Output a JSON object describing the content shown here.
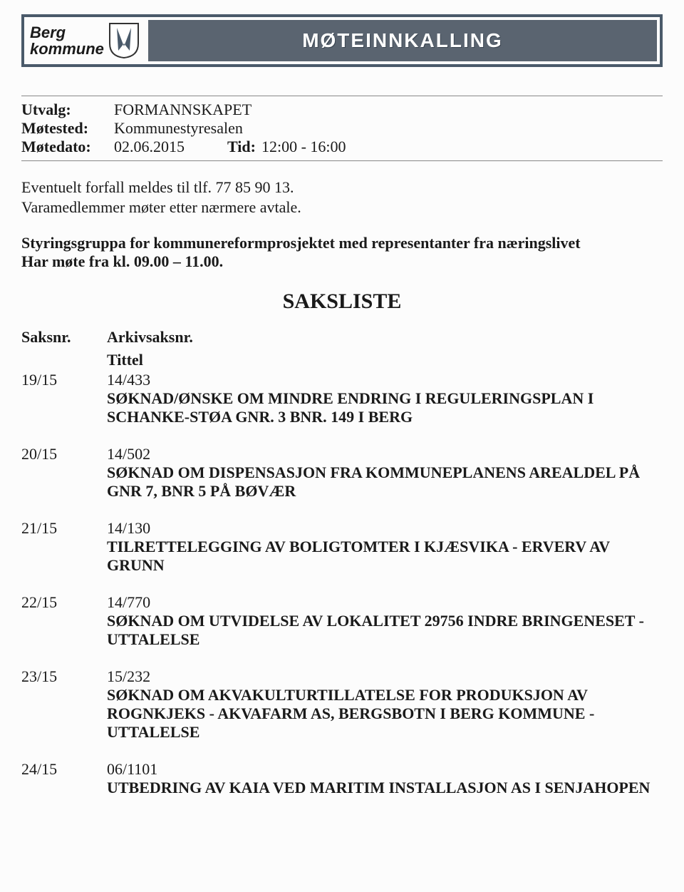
{
  "header": {
    "org_line1": "Berg",
    "org_line2": "kommune",
    "banner": "MØTEINNKALLING",
    "banner_bg": "#5a6470",
    "banner_fg": "#ffffff",
    "border_color": "#4a5a6a"
  },
  "meta": {
    "utvalg_label": "Utvalg:",
    "utvalg_value": "FORMANNSKAPET",
    "motested_label": "Møtested:",
    "motested_value": "Kommunestyresalen",
    "motedato_label": "Møtedato:",
    "motedato_value": "02.06.2015",
    "tid_label": "Tid:",
    "tid_value": "12:00 - 16:00"
  },
  "notes": {
    "line1": "Eventuelt forfall meldes til tlf. 77 85 90 13.",
    "line2": "Varamedlemmer møter etter nærmere avtale."
  },
  "emphasis": {
    "line1": "Styringsgruppa for kommunereformprosjektet med representanter fra næringslivet",
    "line2": "Har møte fra kl. 09.00 – 11.00."
  },
  "saksliste": {
    "heading": "SAKSLISTE",
    "col_saksnr": "Saksnr.",
    "col_arkiv": "Arkivsaksnr.",
    "col_tittel": "Tittel",
    "items": [
      {
        "saksnr": "19/15",
        "arkiv": "14/433",
        "title": "SØKNAD/ØNSKE OM MINDRE ENDRING I REGULERINGSPLAN I SCHANKE-STØA GNR. 3 BNR. 149 I BERG"
      },
      {
        "saksnr": "20/15",
        "arkiv": "14/502",
        "title": "SØKNAD OM DISPENSASJON FRA KOMMUNEPLANENS AREALDEL PÅ GNR 7, BNR 5 PÅ BØVÆR"
      },
      {
        "saksnr": "21/15",
        "arkiv": "14/130",
        "title": "TILRETTELEGGING AV BOLIGTOMTER I KJÆSVIKA - ERVERV AV GRUNN"
      },
      {
        "saksnr": "22/15",
        "arkiv": "14/770",
        "title": "SØKNAD OM UTVIDELSE AV LOKALITET 29756 INDRE BRINGENESET - UTTALELSE"
      },
      {
        "saksnr": "23/15",
        "arkiv": "15/232",
        "title": "SØKNAD OM AKVAKULTURTILLATELSE FOR PRODUKSJON AV ROGNKJEKS - AKVAFARM AS, BERGSBOTN I BERG KOMMUNE - UTTALELSE"
      },
      {
        "saksnr": "24/15",
        "arkiv": "06/1101",
        "title": "UTBEDRING AV KAIA VED MARITIM INSTALLASJON AS I SENJAHOPEN"
      }
    ]
  }
}
